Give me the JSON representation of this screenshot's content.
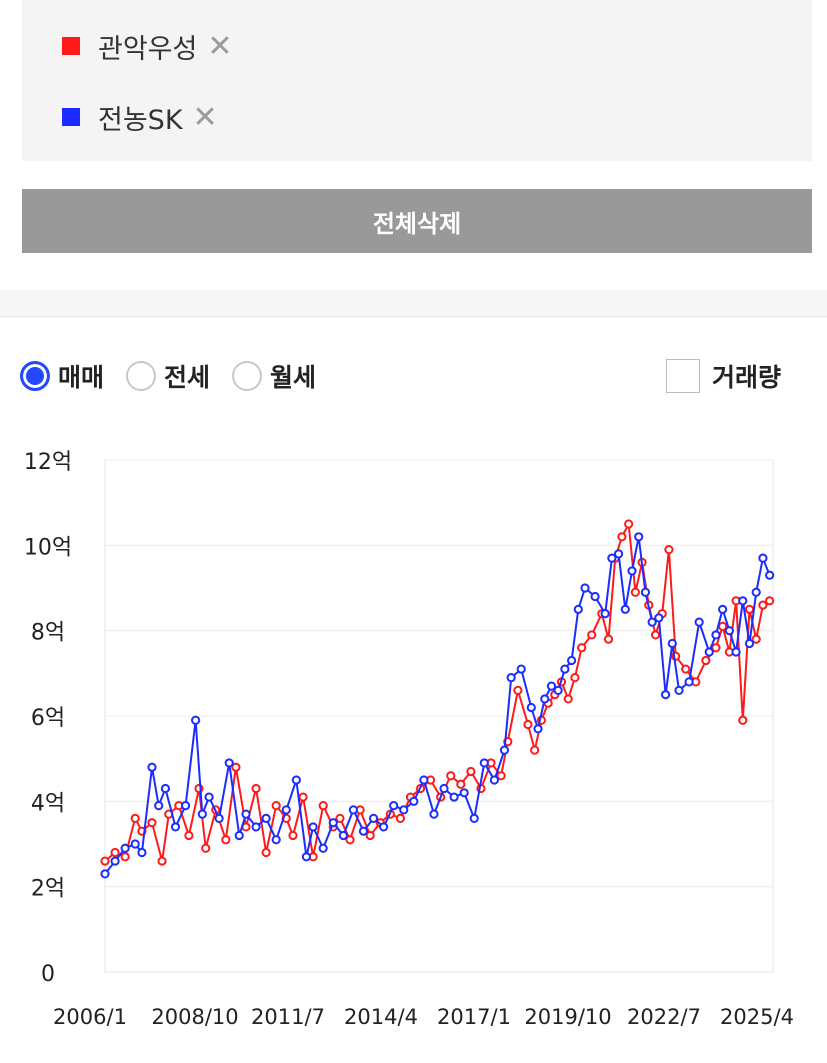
{
  "selected_items": [
    {
      "name": "관악우성",
      "color": "#ff1a1a",
      "remove": "✕"
    },
    {
      "name": "전농SK",
      "color": "#1a2cff",
      "remove": "✕"
    }
  ],
  "clear_all_label": "전체삭제",
  "trade_types": [
    {
      "label": "매매",
      "checked": true
    },
    {
      "label": "전세",
      "checked": false
    },
    {
      "label": "월세",
      "checked": false
    }
  ],
  "volume_label": "거래량",
  "volume_checked": false,
  "chart_data": {
    "type": "line",
    "title": "",
    "xlabel": "",
    "ylabel": "",
    "x_ticks": [
      "2006/1",
      "2008/10",
      "2011/7",
      "2014/4",
      "2017/1",
      "2019/10",
      "2022/7",
      "2025/4"
    ],
    "y_ticks": [
      "0",
      "2억",
      "4억",
      "6억",
      "8억",
      "10억",
      "12억"
    ],
    "ylim": [
      0,
      12
    ],
    "xlim": [
      2006.0,
      2025.9
    ],
    "grid": true,
    "series": [
      {
        "name": "관악우성",
        "color": "#ff1a1a",
        "x": [
          2006.0,
          2006.3,
          2006.6,
          2006.9,
          2007.1,
          2007.4,
          2007.7,
          2007.9,
          2008.2,
          2008.5,
          2008.8,
          2009.0,
          2009.3,
          2009.6,
          2009.9,
          2010.2,
          2010.5,
          2010.8,
          2011.1,
          2011.4,
          2011.6,
          2011.9,
          2012.2,
          2012.5,
          2012.8,
          2013.0,
          2013.3,
          2013.6,
          2013.9,
          2014.2,
          2014.5,
          2014.8,
          2015.1,
          2015.4,
          2015.7,
          2016.0,
          2016.3,
          2016.6,
          2016.9,
          2017.2,
          2017.5,
          2017.8,
          2018.0,
          2018.3,
          2018.6,
          2018.8,
          2019.0,
          2019.2,
          2019.4,
          2019.6,
          2019.8,
          2020.0,
          2020.2,
          2020.5,
          2020.8,
          2021.0,
          2021.2,
          2021.4,
          2021.6,
          2021.8,
          2022.0,
          2022.2,
          2022.4,
          2022.6,
          2022.8,
          2023.0,
          2023.3,
          2023.6,
          2023.9,
          2024.2,
          2024.4,
          2024.6,
          2024.8,
          2025.0,
          2025.2,
          2025.4,
          2025.6,
          2025.8
        ],
        "y": [
          2.6,
          2.8,
          2.7,
          3.6,
          3.3,
          3.5,
          2.6,
          3.7,
          3.9,
          3.2,
          4.3,
          2.9,
          3.8,
          3.1,
          4.8,
          3.4,
          4.3,
          2.8,
          3.9,
          3.6,
          3.2,
          4.1,
          2.7,
          3.9,
          3.4,
          3.6,
          3.1,
          3.8,
          3.2,
          3.5,
          3.7,
          3.6,
          4.1,
          4.3,
          4.5,
          4.1,
          4.6,
          4.4,
          4.7,
          4.3,
          4.9,
          4.6,
          5.4,
          6.6,
          5.8,
          5.2,
          5.9,
          6.3,
          6.5,
          6.8,
          6.4,
          6.9,
          7.6,
          7.9,
          8.4,
          7.8,
          9.7,
          10.2,
          10.5,
          8.9,
          9.6,
          8.6,
          7.9,
          8.4,
          9.9,
          7.4,
          7.1,
          6.8,
          7.3,
          7.6,
          8.1,
          7.5,
          8.7,
          5.9,
          8.5,
          7.8,
          8.6,
          8.7
        ]
      },
      {
        "name": "전농SK",
        "color": "#1a2cff",
        "x": [
          2006.0,
          2006.3,
          2006.6,
          2006.9,
          2007.1,
          2007.4,
          2007.6,
          2007.8,
          2008.1,
          2008.4,
          2008.7,
          2008.9,
          2009.1,
          2009.4,
          2009.7,
          2010.0,
          2010.2,
          2010.5,
          2010.8,
          2011.1,
          2011.4,
          2011.7,
          2012.0,
          2012.2,
          2012.5,
          2012.8,
          2013.1,
          2013.4,
          2013.7,
          2014.0,
          2014.3,
          2014.6,
          2014.9,
          2015.2,
          2015.5,
          2015.8,
          2016.1,
          2016.4,
          2016.7,
          2017.0,
          2017.3,
          2017.6,
          2017.9,
          2018.1,
          2018.4,
          2018.7,
          2018.9,
          2019.1,
          2019.3,
          2019.5,
          2019.7,
          2019.9,
          2020.1,
          2020.3,
          2020.6,
          2020.9,
          2021.1,
          2021.3,
          2021.5,
          2021.7,
          2021.9,
          2022.1,
          2022.3,
          2022.5,
          2022.7,
          2022.9,
          2023.1,
          2023.4,
          2023.7,
          2024.0,
          2024.2,
          2024.4,
          2024.6,
          2024.8,
          2025.0,
          2025.2,
          2025.4,
          2025.6,
          2025.8
        ],
        "y": [
          2.3,
          2.6,
          2.9,
          3.0,
          2.8,
          4.8,
          3.9,
          4.3,
          3.4,
          3.9,
          5.9,
          3.7,
          4.1,
          3.6,
          4.9,
          3.2,
          3.7,
          3.4,
          3.6,
          3.1,
          3.8,
          4.5,
          2.7,
          3.4,
          2.9,
          3.5,
          3.2,
          3.8,
          3.3,
          3.6,
          3.4,
          3.9,
          3.8,
          4.0,
          4.5,
          3.7,
          4.3,
          4.1,
          4.2,
          3.6,
          4.9,
          4.5,
          5.2,
          6.9,
          7.1,
          6.2,
          5.7,
          6.4,
          6.7,
          6.6,
          7.1,
          7.3,
          8.5,
          9.0,
          8.8,
          8.4,
          9.7,
          9.8,
          8.5,
          9.4,
          10.2,
          8.9,
          8.2,
          8.3,
          6.5,
          7.7,
          6.6,
          6.8,
          8.2,
          7.5,
          7.9,
          8.5,
          8.0,
          7.5,
          8.7,
          7.7,
          8.9,
          9.7,
          9.3
        ]
      }
    ]
  }
}
